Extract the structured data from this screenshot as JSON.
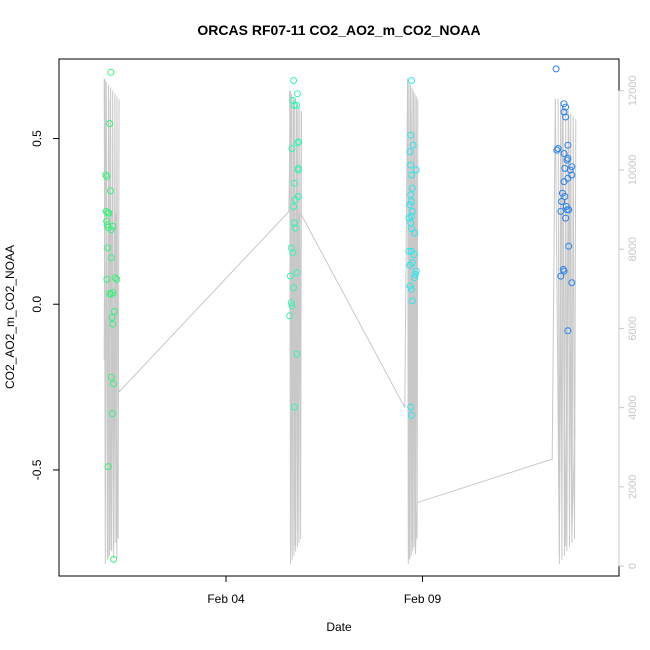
{
  "chart_data": {
    "type": "scatter",
    "title": "ORCAS RF07-11 CO2_AO2_m_CO2_NOAA",
    "xlabel": "Date",
    "ylabel": "CO2_AO2_m_CO2_NOAA",
    "xlim": [
      -2.25,
      12.0
    ],
    "ylim": [
      -0.82,
      0.74
    ],
    "y2lim": [
      -250,
      12800
    ],
    "x_ticks": [
      {
        "value": 2.0,
        "label": "Feb 04"
      },
      {
        "value": 7.0,
        "label": "Feb 09"
      }
    ],
    "y_ticks": [
      {
        "value": -0.5,
        "label": "-0.5"
      },
      {
        "value": 0.0,
        "label": "0.0"
      },
      {
        "value": 0.5,
        "label": "0.5"
      }
    ],
    "y2_ticks": [
      {
        "value": 0,
        "label": "0"
      },
      {
        "value": 2000,
        "label": "2000"
      },
      {
        "value": 4000,
        "label": "4000"
      },
      {
        "value": 6000,
        "label": "6000"
      },
      {
        "value": 8000,
        "label": "8000"
      },
      {
        "value": 10000,
        "label": "10000"
      },
      {
        "value": 12000,
        "label": "12000"
      }
    ],
    "colors": {
      "flight1": "#3cf07c",
      "flight2": "#37f2b3",
      "flight3": "#2de6ee",
      "flight4": "#2a82ec",
      "altitude_line": "#c8c8c8"
    },
    "series": [
      {
        "color": "#3cf07c",
        "points": [
          [
            -1.06,
            0.39
          ],
          [
            -1.03,
            0.385
          ],
          [
            -1.05,
            0.28
          ],
          [
            -1.01,
            0.275
          ],
          [
            -0.98,
            0.275
          ],
          [
            -1.04,
            0.25
          ],
          [
            -1.02,
            0.24
          ],
          [
            -1.0,
            0.232
          ],
          [
            -0.92,
            0.225
          ],
          [
            -0.88,
            0.235
          ],
          [
            -0.96,
            0.545
          ],
          [
            -0.93,
            0.7
          ],
          [
            -0.94,
            0.342
          ],
          [
            -1.01,
            0.17
          ],
          [
            -0.92,
            0.14
          ],
          [
            -1.03,
            0.075
          ],
          [
            -0.82,
            0.08
          ],
          [
            -0.78,
            0.075
          ],
          [
            -0.96,
            0.032
          ],
          [
            -0.92,
            0.03
          ],
          [
            -0.88,
            0.035
          ],
          [
            -0.84,
            -0.022
          ],
          [
            -0.9,
            -0.04
          ],
          [
            -0.88,
            -0.06
          ],
          [
            -0.92,
            -0.22
          ],
          [
            -0.86,
            -0.24
          ],
          [
            -0.89,
            -0.33
          ],
          [
            -1.0,
            -0.49
          ],
          [
            -0.86,
            -0.77
          ]
        ]
      },
      {
        "color": "#37f2b3",
        "points": [
          [
            3.72,
            0.675
          ],
          [
            3.7,
            0.615
          ],
          [
            3.74,
            0.6
          ],
          [
            3.82,
            0.635
          ],
          [
            3.8,
            0.6
          ],
          [
            3.85,
            0.49
          ],
          [
            3.82,
            0.487
          ],
          [
            3.68,
            0.47
          ],
          [
            3.84,
            0.41
          ],
          [
            3.84,
            0.405
          ],
          [
            3.74,
            0.365
          ],
          [
            3.76,
            0.315
          ],
          [
            3.72,
            0.295
          ],
          [
            3.84,
            0.325
          ],
          [
            3.74,
            0.245
          ],
          [
            3.76,
            0.23
          ],
          [
            3.66,
            0.17
          ],
          [
            3.7,
            0.155
          ],
          [
            3.8,
            0.095
          ],
          [
            3.64,
            0.085
          ],
          [
            3.72,
            0.05
          ],
          [
            3.66,
            0.005
          ],
          [
            3.68,
            -0.005
          ],
          [
            3.62,
            -0.035
          ],
          [
            3.8,
            -0.15
          ],
          [
            3.74,
            -0.31
          ]
        ]
      },
      {
        "color": "#2de6ee",
        "points": [
          [
            6.72,
            0.675
          ],
          [
            6.7,
            0.51
          ],
          [
            6.76,
            0.48
          ],
          [
            6.68,
            0.46
          ],
          [
            6.7,
            0.42
          ],
          [
            6.84,
            0.405
          ],
          [
            6.72,
            0.39
          ],
          [
            6.74,
            0.35
          ],
          [
            6.7,
            0.33
          ],
          [
            6.72,
            0.31
          ],
          [
            6.68,
            0.3
          ],
          [
            6.74,
            0.28
          ],
          [
            6.72,
            0.265
          ],
          [
            6.66,
            0.26
          ],
          [
            6.7,
            0.245
          ],
          [
            6.72,
            0.228
          ],
          [
            6.8,
            0.215
          ],
          [
            6.66,
            0.16
          ],
          [
            6.72,
            0.16
          ],
          [
            6.78,
            0.15
          ],
          [
            6.74,
            0.125
          ],
          [
            6.68,
            0.118
          ],
          [
            6.82,
            0.09
          ],
          [
            6.84,
            0.1
          ],
          [
            6.8,
            0.08
          ],
          [
            6.68,
            0.055
          ],
          [
            6.72,
            0.045
          ],
          [
            6.74,
            0.01
          ],
          [
            6.7,
            -0.31
          ],
          [
            6.72,
            -0.335
          ]
        ]
      },
      {
        "color": "#2a82ec",
        "points": [
          [
            10.4,
            0.71
          ],
          [
            10.6,
            0.605
          ],
          [
            10.64,
            0.595
          ],
          [
            10.6,
            0.58
          ],
          [
            10.64,
            0.565
          ],
          [
            10.45,
            0.47
          ],
          [
            10.42,
            0.465
          ],
          [
            10.7,
            0.48
          ],
          [
            10.6,
            0.455
          ],
          [
            10.7,
            0.44
          ],
          [
            10.68,
            0.435
          ],
          [
            10.8,
            0.415
          ],
          [
            10.62,
            0.41
          ],
          [
            10.76,
            0.405
          ],
          [
            10.8,
            0.39
          ],
          [
            10.7,
            0.38
          ],
          [
            10.6,
            0.37
          ],
          [
            10.56,
            0.335
          ],
          [
            10.62,
            0.325
          ],
          [
            10.54,
            0.31
          ],
          [
            10.66,
            0.295
          ],
          [
            10.68,
            0.285
          ],
          [
            10.72,
            0.285
          ],
          [
            10.52,
            0.28
          ],
          [
            10.64,
            0.26
          ],
          [
            10.72,
            0.175
          ],
          [
            10.58,
            0.105
          ],
          [
            10.6,
            0.1
          ],
          [
            10.52,
            0.085
          ],
          [
            10.8,
            0.065
          ],
          [
            10.7,
            -0.08
          ]
        ]
      }
    ],
    "altitude_series": {
      "spikes": [
        {
          "x": [
            -1.1,
            -0.72
          ],
          "ymin": 0,
          "ymax": 12300
        },
        {
          "x": [
            3.62,
            3.92
          ],
          "ymin": 0,
          "ymax": 12000
        },
        {
          "x": [
            6.62,
            6.88
          ],
          "ymin": 0,
          "ymax": 12300
        },
        {
          "x": [
            10.45,
            10.9
          ],
          "ymin": 0,
          "ymax": 11800
        }
      ],
      "path": [
        [
          -1.1,
          5200
        ],
        [
          -1.08,
          12300
        ],
        [
          -1.0,
          200
        ],
        [
          -0.98,
          11800
        ],
        [
          -0.93,
          400
        ],
        [
          -0.9,
          8900
        ],
        [
          -0.86,
          200
        ],
        [
          -0.8,
          8900
        ],
        [
          -0.78,
          200
        ],
        [
          -0.74,
          4600
        ],
        [
          -0.72,
          4400
        ],
        [
          3.6,
          8950
        ],
        [
          3.64,
          12000
        ],
        [
          3.68,
          300
        ],
        [
          3.72,
          11800
        ],
        [
          3.76,
          500
        ],
        [
          3.8,
          11500
        ],
        [
          3.82,
          900
        ],
        [
          3.86,
          8900
        ],
        [
          3.9,
          8900
        ],
        [
          6.55,
          4000
        ],
        [
          6.62,
          12300
        ],
        [
          6.66,
          200
        ],
        [
          6.7,
          11500
        ],
        [
          6.74,
          600
        ],
        [
          6.78,
          11000
        ],
        [
          6.82,
          300
        ],
        [
          6.86,
          1600
        ],
        [
          10.3,
          2700
        ],
        [
          10.38,
          11800
        ],
        [
          10.48,
          300
        ],
        [
          10.56,
          11600
        ],
        [
          10.64,
          500
        ],
        [
          10.72,
          11400
        ],
        [
          10.8,
          800
        ],
        [
          10.88,
          3500
        ]
      ]
    }
  }
}
